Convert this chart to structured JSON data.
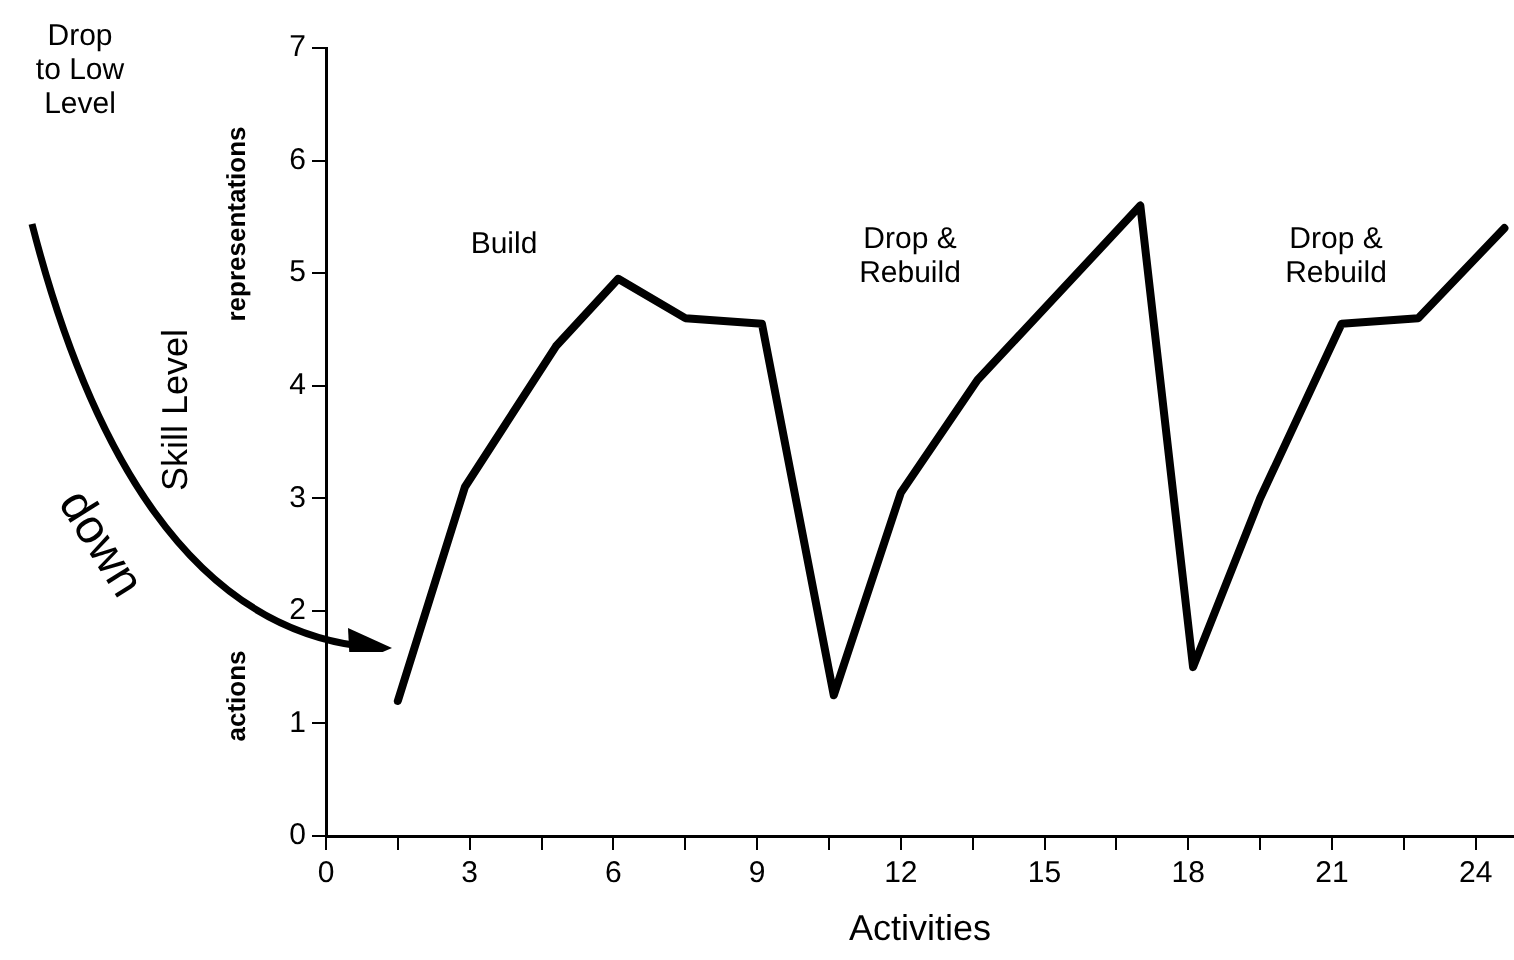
{
  "chart_data": {
    "type": "line",
    "xlabel": "Activities",
    "ylabel": "Skill Level",
    "x": [
      1.5,
      2.9,
      4.8,
      6.1,
      7.5,
      9.1,
      10.6,
      12.0,
      13.6,
      17.0,
      18.1,
      19.5,
      21.2,
      22.8,
      24.6
    ],
    "series": [
      {
        "color": "#000000",
        "values": [
          1.2,
          3.1,
          4.35,
          4.95,
          4.6,
          4.55,
          1.25,
          3.05,
          4.05,
          5.6,
          1.5,
          3.0,
          4.55,
          4.6,
          5.4
        ]
      }
    ],
    "xlim": [
      0,
      24.8
    ],
    "ylim": [
      0,
      7
    ],
    "xticks": [
      0,
      {
        "value": 1.5,
        "label": null
      },
      3,
      {
        "value": 4.5,
        "label": null
      },
      6,
      {
        "value": 7.5,
        "label": null
      },
      9,
      {
        "value": 10.5,
        "label": null
      },
      12,
      {
        "value": 13.5,
        "label": null
      },
      15,
      {
        "value": 16.5,
        "label": null
      },
      18,
      {
        "value": 19.5,
        "label": null
      },
      21,
      {
        "value": 22.5,
        "label": null
      },
      24
    ],
    "yticks": [
      0,
      1,
      2,
      3,
      4,
      5,
      6,
      7
    ],
    "annotations": [
      "Drop\nto Low\nLevel",
      "Build",
      "Drop &\nRebuild",
      "Drop &\nRebuild",
      "down",
      "representations",
      "actions"
    ],
    "grid": false,
    "legend": false,
    "marker": "none",
    "line_style": "solid"
  }
}
